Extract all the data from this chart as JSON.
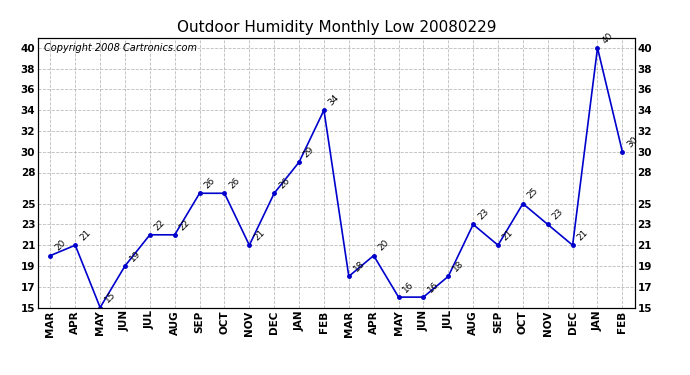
{
  "title": "Outdoor Humidity Monthly Low 20080229",
  "copyright": "Copyright 2008 Cartronics.com",
  "x_labels": [
    "MAR",
    "APR",
    "MAY",
    "JUN",
    "JUL",
    "AUG",
    "SEP",
    "OCT",
    "NOV",
    "DEC",
    "JAN",
    "FEB",
    "MAR",
    "APR",
    "MAY",
    "JUN",
    "JUL",
    "AUG",
    "SEP",
    "OCT",
    "NOV",
    "DEC",
    "JAN",
    "FEB"
  ],
  "y_values": [
    20,
    21,
    15,
    19,
    22,
    22,
    26,
    26,
    21,
    26,
    29,
    34,
    18,
    20,
    16,
    16,
    18,
    23,
    21,
    25,
    23,
    21,
    40,
    30
  ],
  "point_labels": [
    "20",
    "21",
    "15",
    "19",
    "22",
    "22",
    "26",
    "26",
    "21",
    "26",
    "29",
    "34",
    "18",
    "20",
    "16",
    "16",
    "18",
    "23",
    "21",
    "25",
    "23",
    "21",
    "40",
    "30"
  ],
  "ylim": [
    15,
    41
  ],
  "yticks": [
    15,
    17,
    19,
    21,
    23,
    25,
    28,
    30,
    32,
    34,
    36,
    38,
    40
  ],
  "line_color": "#0000CC",
  "marker_color": "#0000CC",
  "bg_color": "#ffffff",
  "grid_color": "#aaaaaa",
  "title_fontsize": 11,
  "label_fontsize": 6.5,
  "tick_fontsize": 7.5,
  "copyright_fontsize": 7
}
